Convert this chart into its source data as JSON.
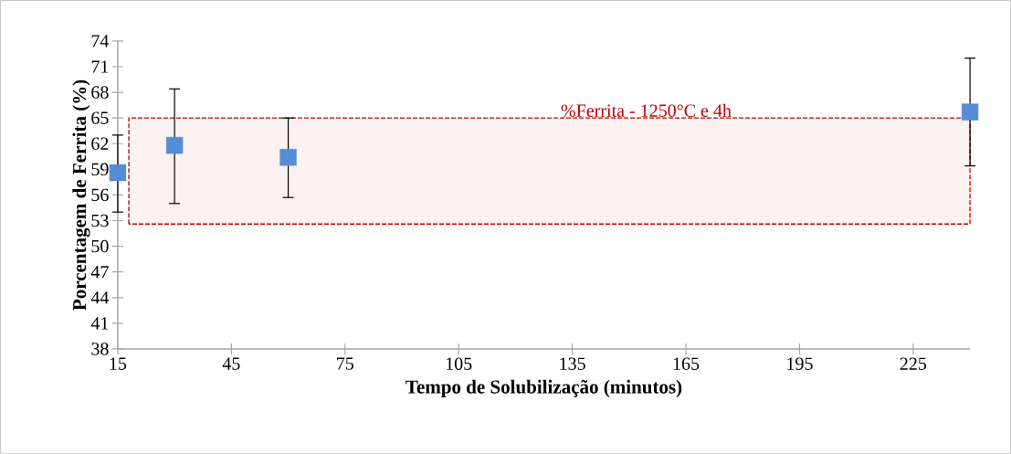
{
  "chart_data": {
    "type": "scatter",
    "xlabel": "Tempo de Solubilização (minutos)",
    "ylabel": "Porcentagem de Ferrita (%)",
    "x": [
      15,
      30,
      60,
      240
    ],
    "series": [
      {
        "color": "#558ed5",
        "values": [
          58.6,
          61.8,
          60.4,
          65.7
        ],
        "errors": [
          [
            54.0,
            63.0
          ],
          [
            55.0,
            68.4
          ],
          [
            55.7,
            65.0
          ],
          [
            59.4,
            72.0
          ]
        ]
      }
    ],
    "xlim": [
      15,
      240
    ],
    "xticks": [
      15,
      45,
      75,
      105,
      135,
      165,
      195,
      225
    ],
    "ylim": [
      38,
      74
    ],
    "yticks": [
      38,
      41,
      44,
      47,
      50,
      53,
      56,
      59,
      62,
      65,
      68,
      71,
      74
    ],
    "bands": [
      {
        "axis": "y",
        "from": 52.6,
        "to": 65,
        "label": "%Ferrita - 1250°C e 4h",
        "color": "#c00000"
      }
    ],
    "marker": "square",
    "grid": false
  }
}
